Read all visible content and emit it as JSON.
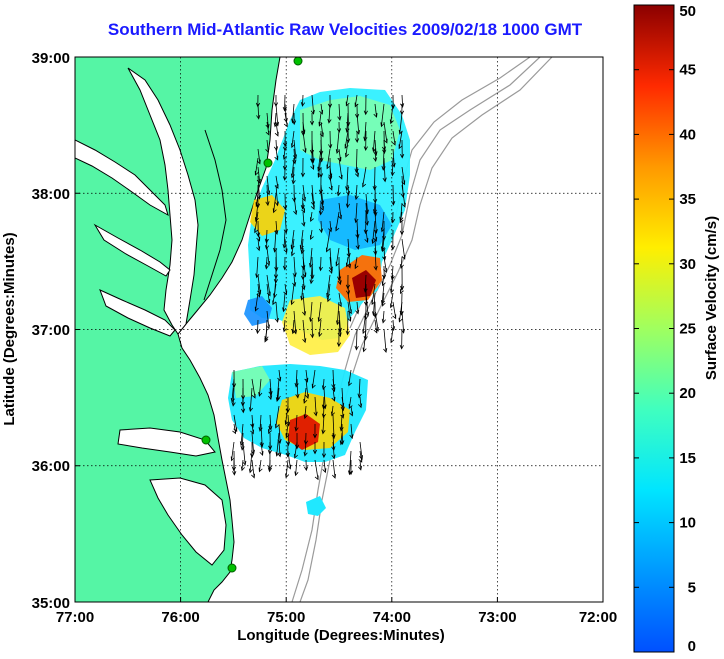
{
  "title": "Southern Mid-Atlantic Raw Velocities 2009/02/18 1000 GMT",
  "x_axis": {
    "label": "Longitude (Degrees:Minutes)",
    "ticks": [
      "77:00",
      "76:00",
      "75:00",
      "74:00",
      "73:00",
      "72:00"
    ]
  },
  "y_axis": {
    "label": "Latitude (Degrees:Minutes)",
    "ticks": [
      "39:00",
      "38:00",
      "37:00",
      "36:00",
      "35:00"
    ]
  },
  "colorbar": {
    "label": "Surface Velocity (cm/s)",
    "ticks": [
      "0",
      "5",
      "10",
      "15",
      "20",
      "25",
      "30",
      "35",
      "40",
      "45",
      "50"
    ],
    "min": 0,
    "max": 50
  },
  "map": {
    "lon_range": [
      -77,
      -72
    ],
    "lat_range": [
      35,
      39
    ],
    "grid": true,
    "land_color": "#55f5a5",
    "land_outline_color": "#000000",
    "bathymetry_color": "#9a9a9a",
    "site_marker_color": "#00c000"
  }
}
